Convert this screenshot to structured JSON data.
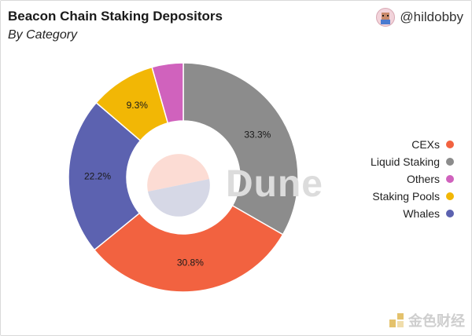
{
  "header": {
    "title": "Beacon Chain Staking Depositors",
    "subtitle": "By Category",
    "author_handle": "@hildobby"
  },
  "watermark": "Dune",
  "brand": "金色财经",
  "chart_data": {
    "type": "pie",
    "style": "donut",
    "categories": [
      "Liquid Staking",
      "CEXs",
      "Whales",
      "Staking Pools",
      "Others"
    ],
    "values": [
      33.3,
      30.8,
      22.2,
      9.3,
      4.4
    ],
    "labels": [
      "33.3%",
      "30.8%",
      "22.2%",
      "9.3%",
      ""
    ],
    "colors": [
      "#8c8c8c",
      "#f26240",
      "#5c62b0",
      "#f2b705",
      "#d062bd"
    ],
    "legend": [
      "CEXs",
      "Liquid Staking",
      "Others",
      "Staking Pools",
      "Whales"
    ],
    "legend_colors": [
      "#f26240",
      "#8c8c8c",
      "#d062bd",
      "#f2b705",
      "#5c62b0"
    ],
    "legend_position": "right"
  }
}
